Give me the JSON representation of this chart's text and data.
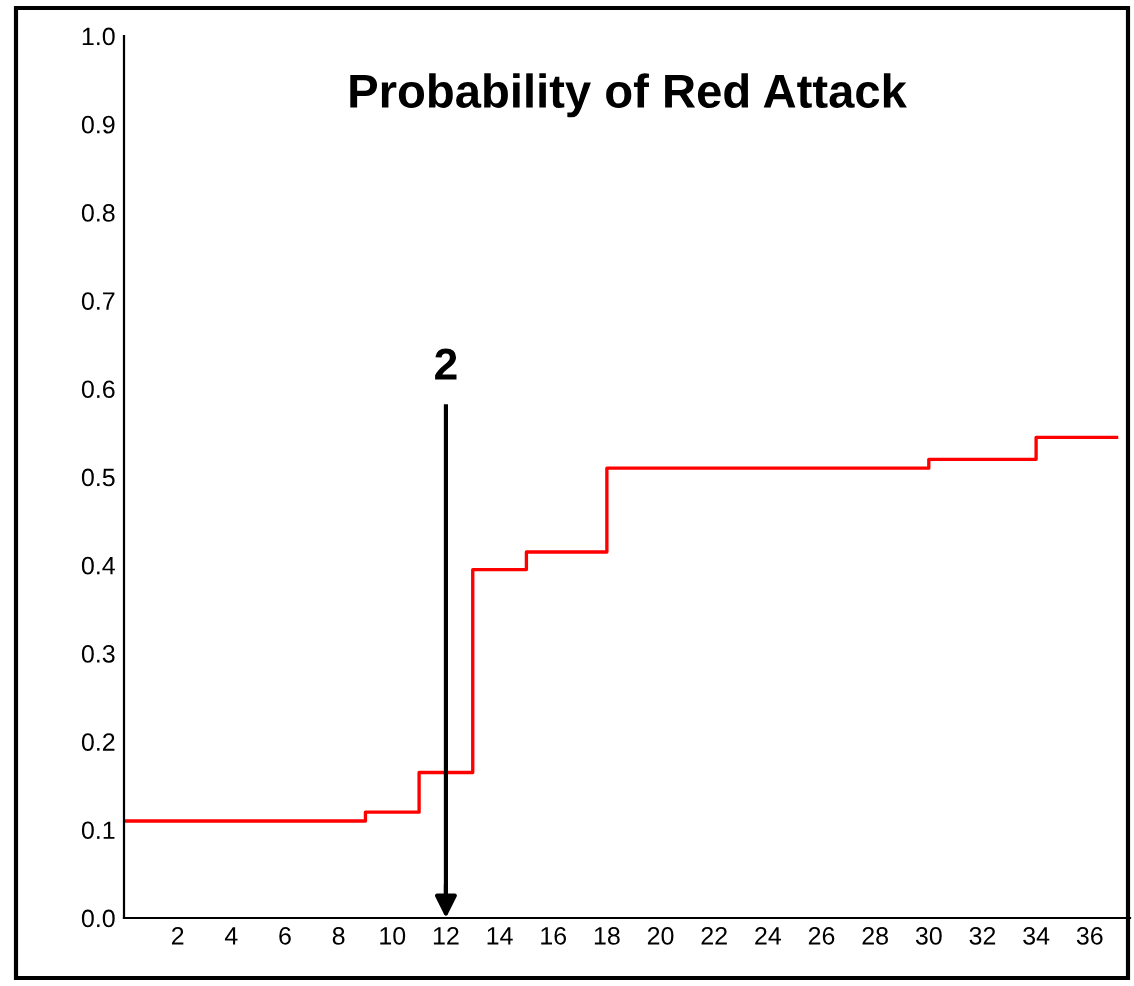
{
  "chart_data": {
    "type": "step",
    "title": "Probability of Red Attack",
    "x": [
      0,
      9,
      11,
      13,
      15,
      18,
      30,
      34,
      37
    ],
    "series": [
      {
        "color": "#ff0000",
        "values": [
          0.11,
          0.12,
          0.165,
          0.395,
          0.415,
          0.51,
          0.52,
          0.545,
          0.545
        ]
      }
    ],
    "xlim": [
      0,
      37.5
    ],
    "xticks": [
      2,
      4,
      6,
      8,
      10,
      12,
      14,
      16,
      18,
      20,
      22,
      24,
      26,
      28,
      30,
      32,
      34,
      36
    ],
    "ylim": [
      0,
      1.0
    ],
    "yticks": [
      {
        "value": 0,
        "label": "0.0"
      },
      0.1,
      0.2,
      0.3,
      0.4,
      0.5,
      0.6,
      0.7,
      0.8,
      0.9,
      {
        "value": 1.0,
        "label": "1.0"
      }
    ],
    "ref_lines": [
      {
        "axis": "x",
        "value": 12,
        "color": "#000000"
      }
    ],
    "annotations": [
      "2"
    ],
    "grid": false,
    "legend": false,
    "marker": "none",
    "line_style": "solid"
  }
}
